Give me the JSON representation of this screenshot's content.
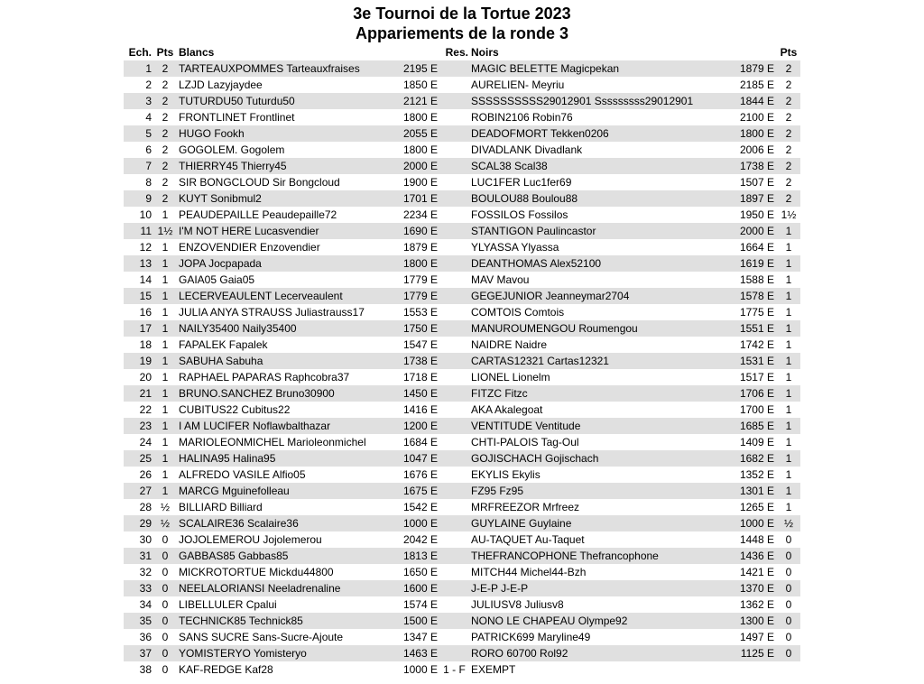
{
  "title": "3e Tournoi de la Tortue 2023",
  "subtitle": "Appariements de la ronde 3",
  "headers": {
    "ech": "Ech.",
    "pts_white": "Pts",
    "white": "Blancs",
    "res": "Res.",
    "black": "Noirs",
    "pts_black": "Pts"
  },
  "row_shade_color": "#e0e0e0",
  "rows": [
    [
      "1",
      "2",
      "TARTEAUXPOMMES Tarteauxfraises",
      "2195 E",
      "",
      "MAGIC BELETTE Magicpekan",
      "1879 E",
      "2"
    ],
    [
      "2",
      "2",
      "LZJD Lazyjaydee",
      "1850 E",
      "",
      "AURELIEN- Meyriu",
      "2185 E",
      "2"
    ],
    [
      "3",
      "2",
      "TUTURDU50 Tuturdu50",
      "2121 E",
      "",
      "SSSSSSSSSS29012901 Sssssssss29012901",
      "1844 E",
      "2"
    ],
    [
      "4",
      "2",
      "FRONTLINET Frontlinet",
      "1800 E",
      "",
      "ROBIN2106 Robin76",
      "2100 E",
      "2"
    ],
    [
      "5",
      "2",
      "HUGO Fookh",
      "2055 E",
      "",
      "DEADOFMORT Tekken0206",
      "1800 E",
      "2"
    ],
    [
      "6",
      "2",
      "GOGOLEM. Gogolem",
      "1800 E",
      "",
      "DIVADLANK Divadlank",
      "2006 E",
      "2"
    ],
    [
      "7",
      "2",
      "THIERRY45 Thierry45",
      "2000 E",
      "",
      "SCAL38 Scal38",
      "1738 E",
      "2"
    ],
    [
      "8",
      "2",
      "SIR BONGCLOUD Sir Bongcloud",
      "1900 E",
      "",
      "LUC1FER Luc1fer69",
      "1507 E",
      "2"
    ],
    [
      "9",
      "2",
      "KUYT Sonibmul2",
      "1701 E",
      "",
      "BOULOU88 Boulou88",
      "1897 E",
      "2"
    ],
    [
      "10",
      "1",
      "PEAUDEPAILLE Peaudepaille72",
      "2234 E",
      "",
      "FOSSILOS Fossilos",
      "1950 E",
      "1½"
    ],
    [
      "11",
      "1½",
      "I'M NOT HERE Lucasvendier",
      "1690 E",
      "",
      "STANTIGON Paulincastor",
      "2000 E",
      "1"
    ],
    [
      "12",
      "1",
      "ENZOVENDIER Enzovendier",
      "1879 E",
      "",
      "YLYASSA Ylyassa",
      "1664 E",
      "1"
    ],
    [
      "13",
      "1",
      "JOPA Jocpapada",
      "1800 E",
      "",
      "DEANTHOMAS Alex52100",
      "1619 E",
      "1"
    ],
    [
      "14",
      "1",
      "GAIA05 Gaia05",
      "1779 E",
      "",
      "MAV Mavou",
      "1588 E",
      "1"
    ],
    [
      "15",
      "1",
      "LECERVEAULENT Lecerveaulent",
      "1779 E",
      "",
      "GEGEJUNIOR Jeanneymar2704",
      "1578 E",
      "1"
    ],
    [
      "16",
      "1",
      "JULIA ANYA STRAUSS Juliastrauss17",
      "1553 E",
      "",
      "COMTOIS Comtois",
      "1775 E",
      "1"
    ],
    [
      "17",
      "1",
      "NAILY35400 Naily35400",
      "1750 E",
      "",
      "MANUROUMENGOU Roumengou",
      "1551 E",
      "1"
    ],
    [
      "18",
      "1",
      "FAPALEK Fapalek",
      "1547 E",
      "",
      "NAIDRE Naidre",
      "1742 E",
      "1"
    ],
    [
      "19",
      "1",
      "SABUHA Sabuha",
      "1738 E",
      "",
      "CARTAS12321 Cartas12321",
      "1531 E",
      "1"
    ],
    [
      "20",
      "1",
      "RAPHAEL PAPARAS Raphcobra37",
      "1718 E",
      "",
      "LIONEL Lionelm",
      "1517 E",
      "1"
    ],
    [
      "21",
      "1",
      "BRUNO.SANCHEZ Bruno30900",
      "1450 E",
      "",
      "FITZC Fitzc",
      "1706 E",
      "1"
    ],
    [
      "22",
      "1",
      "CUBITUS22 Cubitus22",
      "1416 E",
      "",
      "AKA Akalegoat",
      "1700 E",
      "1"
    ],
    [
      "23",
      "1",
      "I AM LUCIFER Noflawbalthazar",
      "1200 E",
      "",
      "VENTITUDE Ventitude",
      "1685 E",
      "1"
    ],
    [
      "24",
      "1",
      "MARIOLEONMICHEL Marioleonmichel",
      "1684 E",
      "",
      "CHTI-PALOIS Tag-Oul",
      "1409 E",
      "1"
    ],
    [
      "25",
      "1",
      "HALINA95 Halina95",
      "1047 E",
      "",
      "GOJISCHACH Gojischach",
      "1682 E",
      "1"
    ],
    [
      "26",
      "1",
      "ALFREDO VASILE Alfio05",
      "1676 E",
      "",
      "EKYLIS Ekylis",
      "1352 E",
      "1"
    ],
    [
      "27",
      "1",
      "MARCG Mguinefolleau",
      "1675 E",
      "",
      "FZ95 Fz95",
      "1301 E",
      "1"
    ],
    [
      "28",
      "½",
      "BILLIARD Billiard",
      "1542 E",
      "",
      "MRFREEZOR Mrfreez",
      "1265 E",
      "1"
    ],
    [
      "29",
      "½",
      "SCALAIRE36 Scalaire36",
      "1000 E",
      "",
      "GUYLAINE Guylaine",
      "1000 E",
      "½"
    ],
    [
      "30",
      "0",
      "JOJOLEMEROU Jojolemerou",
      "2042 E",
      "",
      "AU-TAQUET Au-Taquet",
      "1448 E",
      "0"
    ],
    [
      "31",
      "0",
      "GABBAS85 Gabbas85",
      "1813 E",
      "",
      "THEFRANCOPHONE Thefrancophone",
      "1436 E",
      "0"
    ],
    [
      "32",
      "0",
      "MICKROTORTUE Mickdu44800",
      "1650 E",
      "",
      "MITCH44 Michel44-Bzh",
      "1421 E",
      "0"
    ],
    [
      "33",
      "0",
      "NEELALORIANSI Neeladrenaline",
      "1600 E",
      "",
      "J-E-P J-E-P",
      "1370 E",
      "0"
    ],
    [
      "34",
      "0",
      "LIBELLULER Cpalui",
      "1574 E",
      "",
      "JULIUSV8 Juliusv8",
      "1362 E",
      "0"
    ],
    [
      "35",
      "0",
      "TECHNICK85 Technick85",
      "1500 E",
      "",
      "NONO LE CHAPEAU Olympe92",
      "1300 E",
      "0"
    ],
    [
      "36",
      "0",
      "SANS SUCRE Sans-Sucre-Ajoute",
      "1347 E",
      "",
      "PATRICK699 Maryline49",
      "1497 E",
      "0"
    ],
    [
      "37",
      "0",
      "YOMISTERYO Yomisteryo",
      "1463 E",
      "",
      "RORO 60700 Rol92",
      "1125 E",
      "0"
    ],
    [
      "38",
      "0",
      "KAF-REDGE Kaf28",
      "1000 E",
      "1 - F",
      "EXEMPT",
      "",
      ""
    ]
  ]
}
